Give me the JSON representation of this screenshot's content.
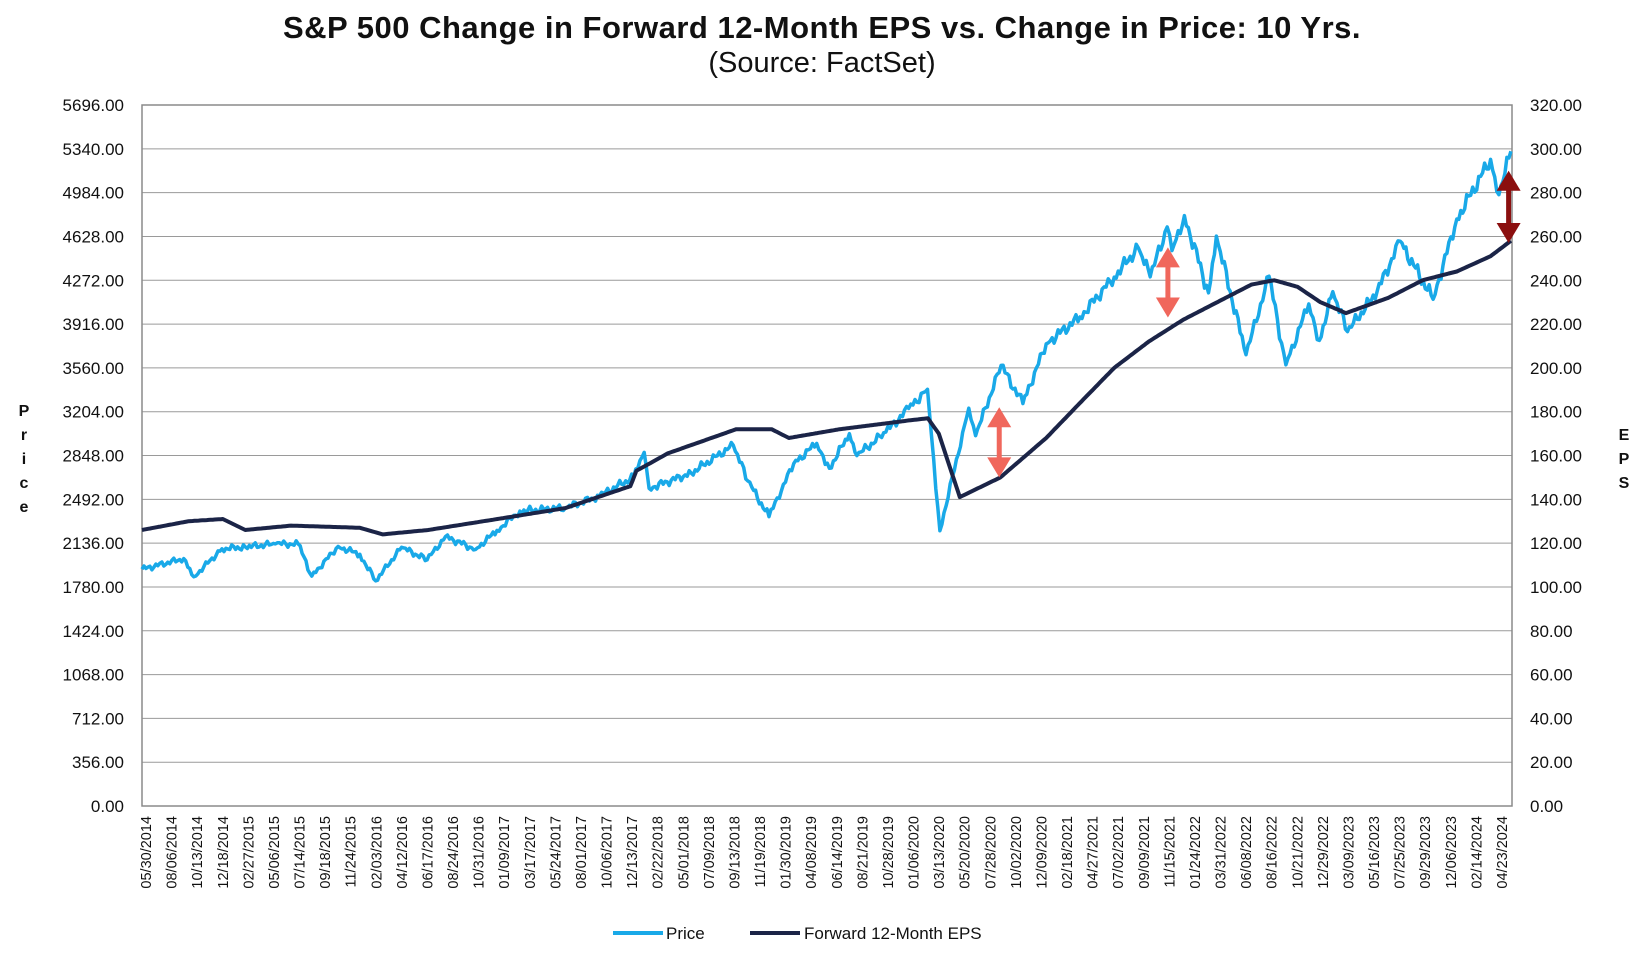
{
  "chart_data": {
    "type": "line",
    "title": "S&P 500 Change in Forward 12-Month EPS vs. Change in Price: 10 Yrs.",
    "subtitle": "(Source: FactSet)",
    "ylabel": "Price",
    "y2label": "EPS",
    "ylim": [
      0,
      5696
    ],
    "y2lim": [
      0,
      320
    ],
    "yticks": [
      "0.00",
      "356.00",
      "712.00",
      "1068.00",
      "1424.00",
      "1780.00",
      "2136.00",
      "2492.00",
      "2848.00",
      "3204.00",
      "3560.00",
      "3916.00",
      "4272.00",
      "4628.00",
      "4984.00",
      "5340.00",
      "5696.00"
    ],
    "y2ticks": [
      "0.00",
      "20.00",
      "40.00",
      "60.00",
      "80.00",
      "100.00",
      "120.00",
      "140.00",
      "160.00",
      "180.00",
      "200.00",
      "220.00",
      "240.00",
      "260.00",
      "280.00",
      "300.00",
      "320.00"
    ],
    "xticks": [
      "05/30/2014",
      "08/06/2014",
      "10/13/2014",
      "12/18/2014",
      "02/27/2015",
      "05/06/2015",
      "07/14/2015",
      "09/18/2015",
      "11/24/2015",
      "02/03/2016",
      "04/12/2016",
      "06/17/2016",
      "08/24/2016",
      "10/31/2016",
      "01/09/2017",
      "03/17/2017",
      "05/24/2017",
      "08/01/2017",
      "10/06/2017",
      "12/13/2017",
      "02/22/2018",
      "05/01/2018",
      "07/09/2018",
      "09/13/2018",
      "11/19/2018",
      "01/30/2019",
      "04/08/2019",
      "06/14/2019",
      "08/21/2019",
      "10/28/2019",
      "01/06/2020",
      "03/13/2020",
      "05/20/2020",
      "07/28/2020",
      "10/02/2020",
      "12/09/2020",
      "02/18/2021",
      "04/27/2021",
      "07/02/2021",
      "09/09/2021",
      "11/15/2021",
      "01/24/2022",
      "03/31/2022",
      "06/08/2022",
      "08/16/2022",
      "10/21/2022",
      "12/29/2022",
      "03/09/2023",
      "05/16/2023",
      "07/25/2023",
      "09/29/2023",
      "12/06/2023",
      "02/14/2024",
      "04/23/2024"
    ],
    "grid": true,
    "legend": "bottom",
    "series": [
      {
        "name": "Price",
        "axis": "left",
        "color": "#19a9e8",
        "points": [
          [
            "2014-05-30",
            1924
          ],
          [
            "2014-09-18",
            2010
          ],
          [
            "2014-10-15",
            1862
          ],
          [
            "2014-12-29",
            2090
          ],
          [
            "2015-03-01",
            2105
          ],
          [
            "2015-05-20",
            2130
          ],
          [
            "2015-07-20",
            2128
          ],
          [
            "2015-08-25",
            1868
          ],
          [
            "2015-11-03",
            2109
          ],
          [
            "2015-12-31",
            2044
          ],
          [
            "2016-02-11",
            1829
          ],
          [
            "2016-04-20",
            2102
          ],
          [
            "2016-06-27",
            2000
          ],
          [
            "2016-08-15",
            2190
          ],
          [
            "2016-11-03",
            2085
          ],
          [
            "2016-12-30",
            2239
          ],
          [
            "2017-03-01",
            2396
          ],
          [
            "2017-06-30",
            2423
          ],
          [
            "2017-09-29",
            2519
          ],
          [
            "2017-12-29",
            2674
          ],
          [
            "2018-01-26",
            2873
          ],
          [
            "2018-02-08",
            2581
          ],
          [
            "2018-05-31",
            2705
          ],
          [
            "2018-09-20",
            2931
          ],
          [
            "2018-10-29",
            2641
          ],
          [
            "2018-12-24",
            2351
          ],
          [
            "2019-02-28",
            2784
          ],
          [
            "2019-04-30",
            2946
          ],
          [
            "2019-06-03",
            2744
          ],
          [
            "2019-07-26",
            3025
          ],
          [
            "2019-08-15",
            2847
          ],
          [
            "2019-10-31",
            3038
          ],
          [
            "2019-12-31",
            3231
          ],
          [
            "2020-02-19",
            3386
          ],
          [
            "2020-03-23",
            2237
          ],
          [
            "2020-06-08",
            3232
          ],
          [
            "2020-06-26",
            3009
          ],
          [
            "2020-09-02",
            3580
          ],
          [
            "2020-10-30",
            3270
          ],
          [
            "2020-12-31",
            3756
          ],
          [
            "2021-03-31",
            3973
          ],
          [
            "2021-06-30",
            4298
          ],
          [
            "2021-09-02",
            4537
          ],
          [
            "2021-10-04",
            4300
          ],
          [
            "2021-11-18",
            4705
          ],
          [
            "2021-12-01",
            4513
          ],
          [
            "2022-01-03",
            4797
          ],
          [
            "2022-03-08",
            4170
          ],
          [
            "2022-03-29",
            4631
          ],
          [
            "2022-06-16",
            3667
          ],
          [
            "2022-08-16",
            4305
          ],
          [
            "2022-09-30",
            3585
          ],
          [
            "2022-11-30",
            4080
          ],
          [
            "2022-12-28",
            3783
          ],
          [
            "2023-02-02",
            4179
          ],
          [
            "2023-03-13",
            3855
          ],
          [
            "2023-05-31",
            4180
          ],
          [
            "2023-07-31",
            4589
          ],
          [
            "2023-10-27",
            4117
          ],
          [
            "2023-12-29",
            4770
          ],
          [
            "2024-03-28",
            5254
          ],
          [
            "2024-04-19",
            4967
          ],
          [
            "2024-05-21",
            5321
          ]
        ]
      },
      {
        "name": "Forward 12-Month EPS",
        "axis": "right",
        "color": "#1b2447",
        "points": [
          [
            "2014-05-30",
            126
          ],
          [
            "2014-10-01",
            130
          ],
          [
            "2014-12-31",
            131
          ],
          [
            "2015-03-01",
            126
          ],
          [
            "2015-07-01",
            128
          ],
          [
            "2015-12-31",
            127
          ],
          [
            "2016-03-01",
            124
          ],
          [
            "2016-06-30",
            126
          ],
          [
            "2016-12-31",
            131
          ],
          [
            "2017-06-30",
            136
          ],
          [
            "2017-12-20",
            146
          ],
          [
            "2018-01-05",
            153
          ],
          [
            "2018-03-30",
            161
          ],
          [
            "2018-09-28",
            172
          ],
          [
            "2018-12-31",
            172
          ],
          [
            "2019-02-15",
            168
          ],
          [
            "2019-06-30",
            172
          ],
          [
            "2019-12-31",
            176
          ],
          [
            "2020-02-20",
            177
          ],
          [
            "2020-03-20",
            170
          ],
          [
            "2020-05-15",
            141
          ],
          [
            "2020-08-31",
            150
          ],
          [
            "2020-12-31",
            168
          ],
          [
            "2021-03-31",
            184
          ],
          [
            "2021-06-30",
            200
          ],
          [
            "2021-09-30",
            212
          ],
          [
            "2021-12-31",
            222
          ],
          [
            "2022-06-30",
            238
          ],
          [
            "2022-08-30",
            240
          ],
          [
            "2022-10-31",
            237
          ],
          [
            "2022-12-31",
            230
          ],
          [
            "2023-03-09",
            225
          ],
          [
            "2023-06-30",
            232
          ],
          [
            "2023-09-29",
            240
          ],
          [
            "2023-12-29",
            244
          ],
          [
            "2024-03-28",
            251
          ],
          [
            "2024-05-21",
            258
          ]
        ]
      }
    ],
    "annotations": [
      {
        "type": "double-arrow",
        "date": "2020-08-28",
        "from": 150,
        "to": 182,
        "axis": "right",
        "color": "#f0675c"
      },
      {
        "type": "double-arrow",
        "date": "2021-11-20",
        "from": 223,
        "to": 255,
        "axis": "right",
        "color": "#f0675c"
      },
      {
        "type": "double-arrow",
        "date": "2024-05-15",
        "from": 257,
        "to": 290,
        "axis": "right",
        "color": "#8b0f0f"
      }
    ]
  }
}
